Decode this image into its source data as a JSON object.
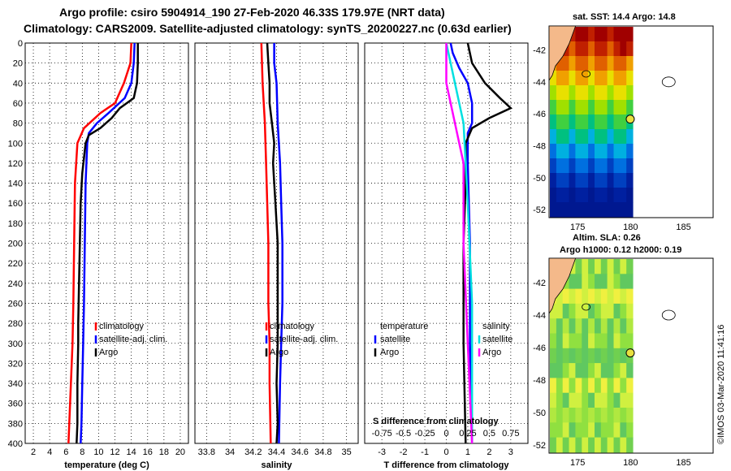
{
  "header": {
    "line1": "Argo profile: csiro 5904914_190 27-Feb-2020 46.33S 179.97E (NRT data)",
    "line2": "Climatology: CARS2009. Satellite-adjusted climatology: synTS_20200227.nc (0.63d earlier)"
  },
  "colors": {
    "climatology": "#ff0000",
    "satellite": "#0000ff",
    "argo": "#000000",
    "salinity_diff": "#00e0e0",
    "sat_salinity_diff": "#ff00ff",
    "land": "#f4b98a"
  },
  "chart_data": [
    {
      "type": "line",
      "id": "temperature",
      "xlabel": "temperature (deg C)",
      "ylabel": "",
      "xlim": [
        1,
        21
      ],
      "ylim": [
        400,
        0
      ],
      "xticks": [
        "2",
        "4",
        "6",
        "8",
        "10",
        "12",
        "14",
        "16",
        "18",
        "20"
      ],
      "yticks": [
        "0",
        "20",
        "40",
        "60",
        "80",
        "100",
        "120",
        "140",
        "160",
        "180",
        "200",
        "220",
        "240",
        "260",
        "280",
        "300",
        "320",
        "340",
        "360",
        "380",
        "400"
      ],
      "legend": [
        "climatology",
        "satellite-adj. clim.",
        "Argo"
      ],
      "series": [
        {
          "name": "climatology",
          "color": "#ff0000",
          "points": [
            [
              14.0,
              0
            ],
            [
              13.9,
              20
            ],
            [
              13.1,
              40
            ],
            [
              12.0,
              60
            ],
            [
              10.2,
              70
            ],
            [
              8.2,
              85
            ],
            [
              7.4,
              100
            ],
            [
              7.1,
              140
            ],
            [
              7.0,
              200
            ],
            [
              6.9,
              260
            ],
            [
              6.8,
              300
            ],
            [
              6.6,
              340
            ],
            [
              6.4,
              380
            ],
            [
              6.3,
              400
            ]
          ]
        },
        {
          "name": "satellite-adj. clim.",
          "color": "#0000ff",
          "points": [
            [
              14.4,
              0
            ],
            [
              14.3,
              20
            ],
            [
              14.0,
              40
            ],
            [
              13.2,
              55
            ],
            [
              11.2,
              70
            ],
            [
              9.8,
              80
            ],
            [
              8.8,
              90
            ],
            [
              8.6,
              100
            ],
            [
              8.4,
              140
            ],
            [
              8.3,
              200
            ],
            [
              8.2,
              260
            ],
            [
              8.1,
              300
            ],
            [
              8.0,
              340
            ],
            [
              7.9,
              380
            ],
            [
              7.8,
              400
            ]
          ]
        },
        {
          "name": "Argo",
          "color": "#000000",
          "points": [
            [
              14.8,
              0
            ],
            [
              14.8,
              20
            ],
            [
              14.7,
              40
            ],
            [
              14.3,
              55
            ],
            [
              12.6,
              65
            ],
            [
              11.6,
              75
            ],
            [
              10.2,
              85
            ],
            [
              8.8,
              92
            ],
            [
              8.4,
              100
            ],
            [
              8.0,
              130
            ],
            [
              7.8,
              160
            ],
            [
              7.7,
              200
            ],
            [
              7.6,
              240
            ],
            [
              7.5,
              280
            ],
            [
              7.5,
              300
            ],
            [
              7.4,
              340
            ],
            [
              7.4,
              380
            ],
            [
              7.3,
              400
            ]
          ]
        }
      ]
    },
    {
      "type": "line",
      "id": "salinity",
      "xlabel": "salinity",
      "xlim": [
        33.7,
        35.1
      ],
      "ylim": [
        400,
        0
      ],
      "xticks": [
        "33.8",
        "34",
        "34.2",
        "34.4",
        "34.6",
        "34.8",
        "35"
      ],
      "legend": [
        "climatology",
        "satellite-adj. clim.",
        "Argo"
      ],
      "series": [
        {
          "name": "climatology",
          "color": "#ff0000",
          "points": [
            [
              34.27,
              0
            ],
            [
              34.28,
              40
            ],
            [
              34.3,
              80
            ],
            [
              34.31,
              120
            ],
            [
              34.33,
              200
            ],
            [
              34.33,
              260
            ],
            [
              34.34,
              300
            ],
            [
              34.34,
              340
            ],
            [
              34.35,
              400
            ]
          ]
        },
        {
          "name": "satellite-adj. clim.",
          "color": "#0000ff",
          "points": [
            [
              34.38,
              0
            ],
            [
              34.38,
              20
            ],
            [
              34.4,
              40
            ],
            [
              34.41,
              80
            ],
            [
              34.43,
              120
            ],
            [
              34.44,
              160
            ],
            [
              34.45,
              200
            ],
            [
              34.45,
              260
            ],
            [
              34.44,
              300
            ],
            [
              34.43,
              340
            ],
            [
              34.42,
              400
            ]
          ]
        },
        {
          "name": "Argo",
          "color": "#000000",
          "points": [
            [
              34.32,
              0
            ],
            [
              34.33,
              20
            ],
            [
              34.34,
              40
            ],
            [
              34.34,
              60
            ],
            [
              34.36,
              80
            ],
            [
              34.38,
              100
            ],
            [
              34.37,
              120
            ],
            [
              34.38,
              140
            ],
            [
              34.39,
              160
            ],
            [
              34.41,
              200
            ],
            [
              34.41,
              260
            ],
            [
              34.41,
              300
            ],
            [
              34.4,
              340
            ],
            [
              34.41,
              380
            ],
            [
              34.4,
              400
            ]
          ]
        }
      ]
    },
    {
      "type": "line",
      "id": "differences",
      "xlabel": "T difference from climatology",
      "xlabel2": "S difference from climatology",
      "xlim": [
        -3.8,
        3.8
      ],
      "ylim": [
        400,
        0
      ],
      "xticks": [
        "-3",
        "-2",
        "-1",
        "0",
        "1",
        "2",
        "3"
      ],
      "xticks2": [
        "-0.75",
        "-0.5",
        "-0.25",
        "0",
        "0.25",
        "0.5",
        "0.75"
      ],
      "legend_left_title": "temperature",
      "legend_left": [
        "satellite",
        "Argo"
      ],
      "legend_right_title": "salinity",
      "legend_right": [
        "satellite",
        "Argo"
      ],
      "series": [
        {
          "name": "T satellite",
          "color": "#0000ff",
          "points": [
            [
              0.2,
              0
            ],
            [
              0.3,
              10
            ],
            [
              0.6,
              25
            ],
            [
              1.0,
              40
            ],
            [
              1.2,
              60
            ],
            [
              1.2,
              80
            ],
            [
              1.0,
              90
            ],
            [
              1.0,
              120
            ],
            [
              1.1,
              200
            ],
            [
              1.1,
              300
            ],
            [
              1.2,
              400
            ]
          ]
        },
        {
          "name": "T Argo",
          "color": "#000000",
          "points": [
            [
              1.0,
              0
            ],
            [
              1.2,
              20
            ],
            [
              1.8,
              40
            ],
            [
              2.5,
              55
            ],
            [
              3.0,
              65
            ],
            [
              2.0,
              75
            ],
            [
              1.2,
              85
            ],
            [
              0.9,
              100
            ],
            [
              0.9,
              140
            ],
            [
              0.8,
              200
            ],
            [
              0.8,
              300
            ],
            [
              0.9,
              400
            ]
          ]
        },
        {
          "name": "S satellite",
          "color": "#00e0e0",
          "points": [
            [
              0.0,
              0
            ],
            [
              0.1,
              40
            ],
            [
              0.2,
              80
            ],
            [
              0.25,
              160
            ],
            [
              0.3,
              260
            ],
            [
              0.3,
              400
            ]
          ]
        },
        {
          "name": "S Argo",
          "color": "#ff00ff",
          "points": [
            [
              0.0,
              0
            ],
            [
              0.0,
              40
            ],
            [
              0.1,
              80
            ],
            [
              0.2,
              120
            ],
            [
              0.2,
              200
            ],
            [
              0.25,
              300
            ],
            [
              0.3,
              400
            ]
          ]
        }
      ]
    }
  ],
  "maps": {
    "sst_title": "sat. SST: 14.4 Argo: 14.8",
    "sla_title1": "Altim. SLA: 0.26",
    "sla_title2": "Argo h1000: 0.12 h2000: 0.19",
    "lon_ticks": [
      "175",
      "180",
      "185"
    ],
    "lat_ticks": [
      "-42",
      "-44",
      "-46",
      "-48",
      "-50",
      "-52"
    ],
    "argo_position": {
      "lon": 179.97,
      "lat": -46.33
    }
  },
  "credit": "©IMOS 03-Mar-2020 11:41:16"
}
